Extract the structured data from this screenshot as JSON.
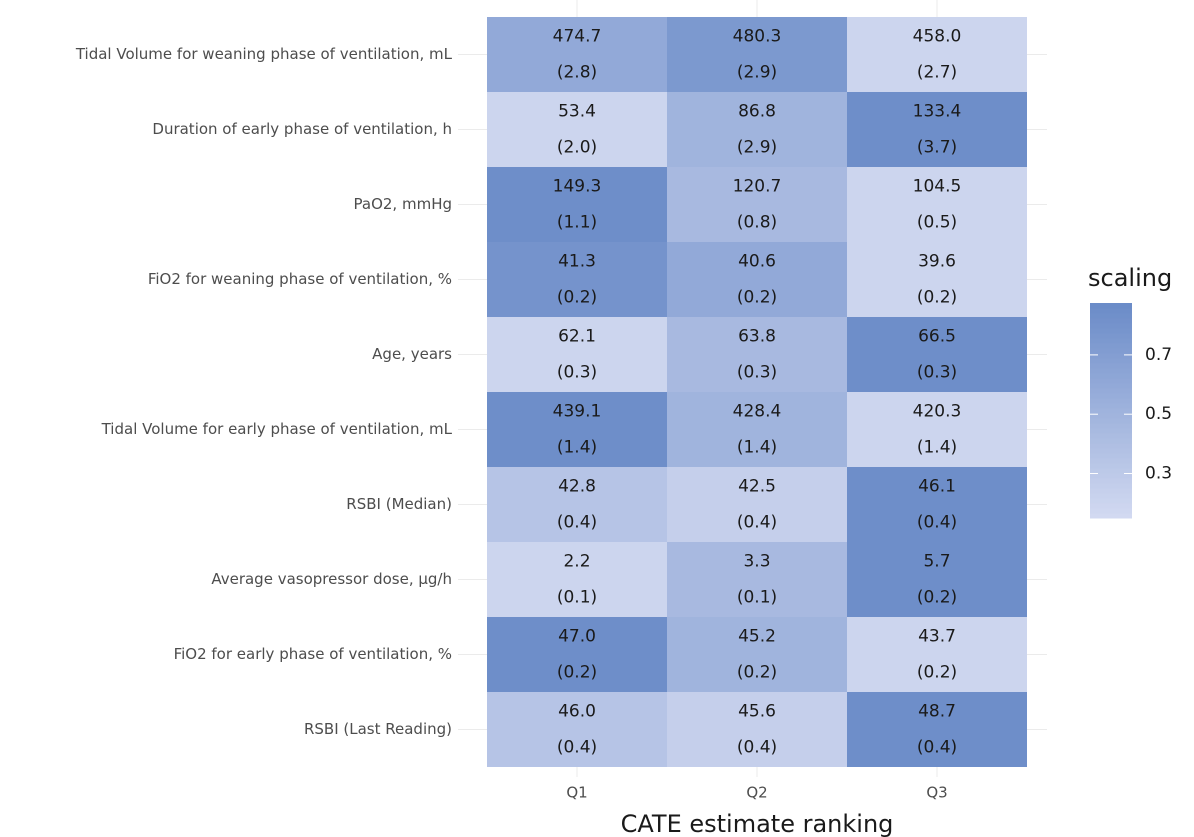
{
  "chart_data": {
    "type": "heatmap",
    "x_label": "CATE estimate ranking",
    "categories": [
      "Q1",
      "Q2",
      "Q3"
    ],
    "rows": [
      "Tidal Volume for weaning phase of ventilation, mL",
      "Duration of early phase of ventilation, h",
      "PaO2, mmHg",
      "FiO2 for weaning phase of ventilation, %",
      "Age, years",
      "Tidal Volume for early phase of ventilation, mL",
      "RSBI (Median)",
      "Average vasopressor dose, µg/h",
      "FiO2 for early phase of ventilation, %",
      "RSBI (Last Reading)"
    ],
    "values": [
      [
        0.6,
        0.75,
        0.2
      ],
      [
        0.2,
        0.5,
        0.85
      ],
      [
        0.85,
        0.45,
        0.2
      ],
      [
        0.8,
        0.6,
        0.2
      ],
      [
        0.2,
        0.45,
        0.85
      ],
      [
        0.85,
        0.5,
        0.2
      ],
      [
        0.35,
        0.25,
        0.85
      ],
      [
        0.2,
        0.45,
        0.85
      ],
      [
        0.85,
        0.5,
        0.2
      ],
      [
        0.35,
        0.25,
        0.85
      ]
    ],
    "mean_labels": [
      [
        "474.7",
        "480.3",
        "458.0"
      ],
      [
        "53.4",
        "86.8",
        "133.4"
      ],
      [
        "149.3",
        "120.7",
        "104.5"
      ],
      [
        "41.3",
        "40.6",
        "39.6"
      ],
      [
        "62.1",
        "63.8",
        "66.5"
      ],
      [
        "439.1",
        "428.4",
        "420.3"
      ],
      [
        "42.8",
        "42.5",
        "46.1"
      ],
      [
        "2.2",
        "3.3",
        "5.7"
      ],
      [
        "47.0",
        "45.2",
        "43.7"
      ],
      [
        "46.0",
        "45.6",
        "48.7"
      ]
    ],
    "se_labels": [
      [
        "(2.8)",
        "(2.9)",
        "(2.7)"
      ],
      [
        "(2.0)",
        "(2.9)",
        "(3.7)"
      ],
      [
        "(1.1)",
        "(0.8)",
        "(0.5)"
      ],
      [
        "(0.2)",
        "(0.2)",
        "(0.2)"
      ],
      [
        "(0.3)",
        "(0.3)",
        "(0.3)"
      ],
      [
        "(1.4)",
        "(1.4)",
        "(1.4)"
      ],
      [
        "(0.4)",
        "(0.4)",
        "(0.4)"
      ],
      [
        "(0.1)",
        "(0.1)",
        "(0.2)"
      ],
      [
        "(0.2)",
        "(0.2)",
        "(0.2)"
      ],
      [
        "(0.4)",
        "(0.4)",
        "(0.4)"
      ]
    ],
    "legend": {
      "title": "scaling",
      "lim": [
        0.15,
        0.875
      ],
      "ticks": [
        0.3,
        0.5,
        0.7
      ],
      "colors": [
        "#d3daf1",
        "#6a8bc8"
      ]
    }
  }
}
